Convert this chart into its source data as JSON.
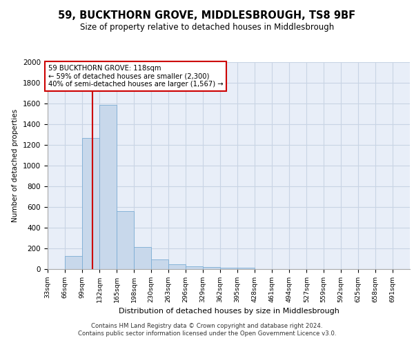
{
  "title": "59, BUCKTHORN GROVE, MIDDLESBROUGH, TS8 9BF",
  "subtitle": "Size of property relative to detached houses in Middlesbrough",
  "xlabel": "Distribution of detached houses by size in Middlesbrough",
  "ylabel": "Number of detached properties",
  "footer_line1": "Contains HM Land Registry data © Crown copyright and database right 2024.",
  "footer_line2": "Contains public sector information licensed under the Open Government Licence v3.0.",
  "bin_edges": [
    33,
    66,
    99,
    132,
    165,
    198,
    230,
    263,
    296,
    329,
    362,
    395,
    428,
    461,
    494,
    527,
    559,
    592,
    625,
    658,
    691,
    724
  ],
  "values": [
    0,
    130,
    1270,
    1590,
    560,
    215,
    95,
    45,
    25,
    20,
    15,
    15,
    0,
    0,
    0,
    0,
    0,
    0,
    0,
    0,
    0
  ],
  "xtick_labels": [
    "33sqm",
    "66sqm",
    "99sqm",
    "132sqm",
    "165sqm",
    "198sqm",
    "230sqm",
    "263sqm",
    "296sqm",
    "329sqm",
    "362sqm",
    "395sqm",
    "428sqm",
    "461sqm",
    "494sqm",
    "527sqm",
    "559sqm",
    "592sqm",
    "625sqm",
    "658sqm",
    "691sqm"
  ],
  "property_size": 118,
  "annotation_text": "59 BUCKTHORN GROVE: 118sqm\n← 59% of detached houses are smaller (2,300)\n40% of semi-detached houses are larger (1,567) →",
  "bar_color": "#c8d8eb",
  "bar_edge_color": "#7badd4",
  "vline_color": "#cc0000",
  "annotation_box_edge_color": "#cc0000",
  "annotation_box_face_color": "white",
  "ylim": [
    0,
    2000
  ],
  "yticks": [
    0,
    200,
    400,
    600,
    800,
    1000,
    1200,
    1400,
    1600,
    1800,
    2000
  ],
  "grid_color": "#c8d4e4",
  "background_color": "#e8eef8"
}
